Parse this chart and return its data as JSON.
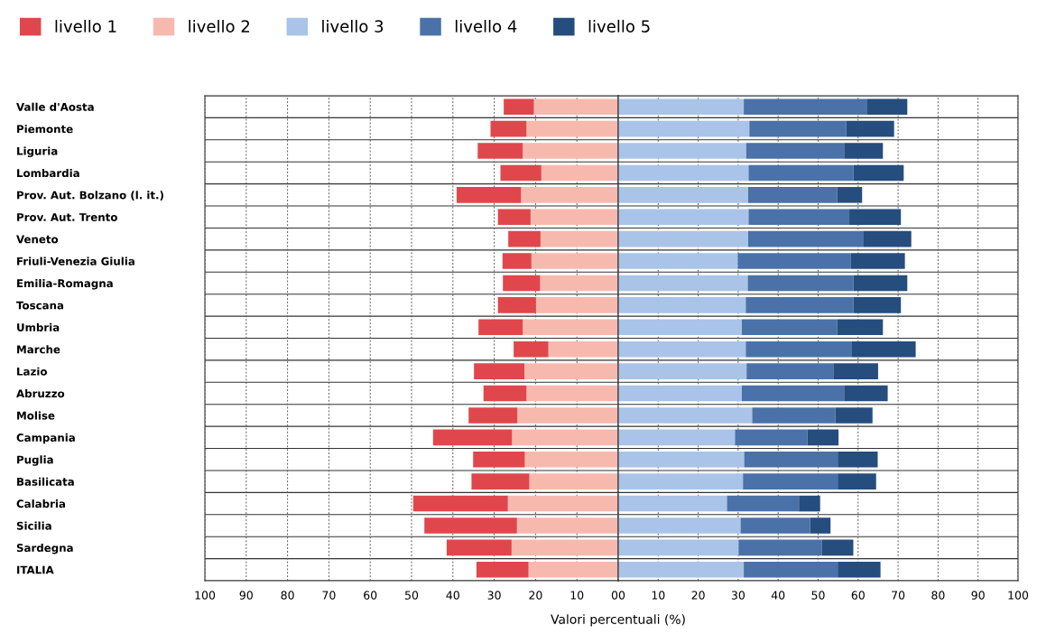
{
  "chart_data": [
    {
      "type": "bar",
      "orientation": "horizontal",
      "stacked": true,
      "legend": "top left",
      "grid": true,
      "xlabel": "Valori percentuali (%)",
      "categories": [
        "Valle d'Aosta",
        "Piemonte",
        "Liguria",
        "Lombardia",
        "Prov. Aut. Bolzano (l. it.)",
        "Prov. Aut. Trento",
        "Veneto",
        "Friuli-Venezia Giulia",
        "Emilia-Romagna",
        "Toscana",
        "Umbria",
        "Marche",
        "Lazio",
        "Abruzzo",
        "Molise",
        "Campania",
        "Puglia",
        "Basilicata",
        "Calabria",
        "Sicilia",
        "Sardegna",
        "ITALIA"
      ],
      "xlim": [
        100,
        0
      ],
      "xticks": [
        100,
        90,
        80,
        70,
        60,
        50,
        40,
        30,
        20,
        10,
        0
      ],
      "series": [
        {
          "name": "livello 2",
          "color": "#f7b9ae",
          "values": [
            20.4,
            22.2,
            23.1,
            18.6,
            23.5,
            21.2,
            18.8,
            21.0,
            18.9,
            19.9,
            23.1,
            16.9,
            22.7,
            22.2,
            24.4,
            25.7,
            22.6,
            21.5,
            26.7,
            24.5,
            25.8,
            21.7
          ]
        },
        {
          "name": "livello 1",
          "color": "#e0474c",
          "values": [
            7.3,
            8.7,
            10.9,
            9.9,
            15.6,
            7.9,
            7.8,
            7.0,
            9.0,
            9.2,
            10.7,
            8.4,
            12.2,
            10.4,
            11.8,
            19.1,
            12.5,
            14.0,
            22.9,
            22.4,
            15.7,
            12.6
          ]
        }
      ]
    },
    {
      "type": "bar",
      "orientation": "horizontal",
      "stacked": true,
      "legend": "top left",
      "grid": true,
      "tick_labels": "x",
      "xlim": [
        0,
        100
      ],
      "xticks": [
        0,
        10,
        20,
        30,
        40,
        50,
        60,
        70,
        80,
        90,
        100
      ],
      "series": [
        {
          "name": "livello 3",
          "color": "#a9c4e8",
          "values": [
            31.4,
            32.8,
            32.0,
            32.6,
            32.5,
            32.6,
            32.5,
            29.9,
            32.4,
            31.9,
            30.9,
            31.9,
            32.1,
            30.9,
            33.5,
            29.2,
            31.5,
            31.2,
            27.2,
            30.6,
            30.1,
            31.4
          ]
        },
        {
          "name": "livello 4",
          "color": "#4a72a8",
          "values": [
            30.9,
            24.2,
            24.5,
            26.2,
            22.3,
            25.2,
            28.9,
            28.3,
            26.4,
            26.9,
            23.9,
            26.4,
            21.7,
            25.6,
            20.8,
            18.1,
            23.4,
            23.7,
            18.0,
            17.4,
            20.8,
            23.5
          ]
        },
        {
          "name": "livello 5",
          "color": "#254d7e",
          "values": [
            10.0,
            12.0,
            9.7,
            12.6,
            6.2,
            12.9,
            11.9,
            13.5,
            13.5,
            11.9,
            11.4,
            16.1,
            11.2,
            10.9,
            9.3,
            7.8,
            10.0,
            9.6,
            5.3,
            5.1,
            7.9,
            10.7
          ]
        }
      ]
    }
  ]
}
